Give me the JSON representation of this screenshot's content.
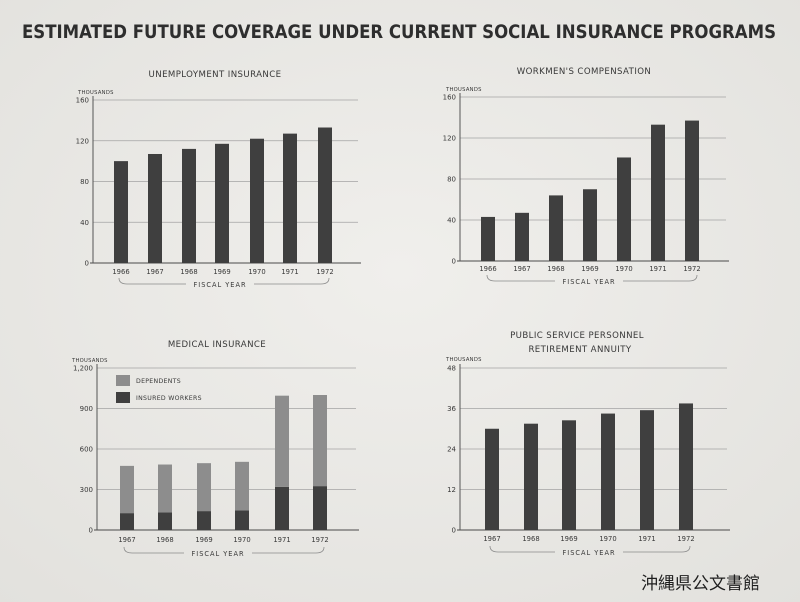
{
  "title": "ESTIMATED FUTURE COVERAGE UNDER CURRENT SOCIAL INSURANCE PROGRAMS",
  "watermark": "沖縄県公文書館",
  "colors": {
    "background": "#ebeae6",
    "text": "#383838",
    "bar": "#3f3f3f",
    "gridline": "#a3a3a3"
  },
  "chart_data": [
    {
      "type": "bar",
      "title": "UNEMPLOYMENT INSURANCE",
      "ylabel": "THOUSANDS",
      "xlabel": "FISCAL YEAR",
      "categories": [
        "1966",
        "1967",
        "1968",
        "1969",
        "1970",
        "1971",
        "1972"
      ],
      "values": [
        100,
        107,
        112,
        117,
        122,
        127,
        133
      ],
      "yticks": [
        "0",
        "40",
        "80",
        "120",
        "160"
      ],
      "ylim": [
        0,
        160
      ],
      "grid": true,
      "color": "#3f3f3f"
    },
    {
      "type": "bar",
      "title": "WORKMEN'S COMPENSATION",
      "ylabel": "THOUSANDS",
      "xlabel": "FISCAL YEAR",
      "categories": [
        "1966",
        "1967",
        "1968",
        "1969",
        "1970",
        "1971",
        "1972"
      ],
      "values": [
        43,
        47,
        64,
        70,
        101,
        133,
        137
      ],
      "yticks": [
        "0",
        "40",
        "80",
        "120",
        "160"
      ],
      "ylim": [
        0,
        160
      ],
      "grid": true,
      "color": "#3f3f3f"
    },
    {
      "type": "bar",
      "stacked": true,
      "title": "MEDICAL INSURANCE",
      "ylabel": "THOUSANDS",
      "xlabel": "FISCAL YEAR",
      "categories": [
        "1967",
        "1968",
        "1969",
        "1970",
        "1971",
        "1972"
      ],
      "series": [
        {
          "name": "INSURED WORKERS",
          "values": [
            125,
            130,
            140,
            145,
            320,
            325
          ],
          "color": "#3f3f3f"
        },
        {
          "name": "DEPENDENTS",
          "values": [
            350,
            355,
            355,
            360,
            675,
            675
          ],
          "color": "#8d8d8d"
        }
      ],
      "yticks": [
        "0",
        "300",
        "600",
        "900",
        "1,200"
      ],
      "ylim": [
        0,
        1200
      ],
      "legend": "top-left",
      "grid": true
    },
    {
      "type": "bar",
      "title": [
        "PUBLIC SERVICE PERSONNEL",
        "RETIREMENT ANNUITY"
      ],
      "ylabel": "THOUSANDS",
      "xlabel": "FISCAL YEAR",
      "categories": [
        "1967",
        "1968",
        "1969",
        "1970",
        "1971",
        "1972"
      ],
      "values": [
        30,
        31.5,
        32.5,
        34.5,
        35.5,
        37.5
      ],
      "yticks": [
        "0",
        "12",
        "24",
        "36",
        "48"
      ],
      "ylim": [
        0,
        48
      ],
      "grid": true,
      "color": "#3f3f3f"
    }
  ]
}
